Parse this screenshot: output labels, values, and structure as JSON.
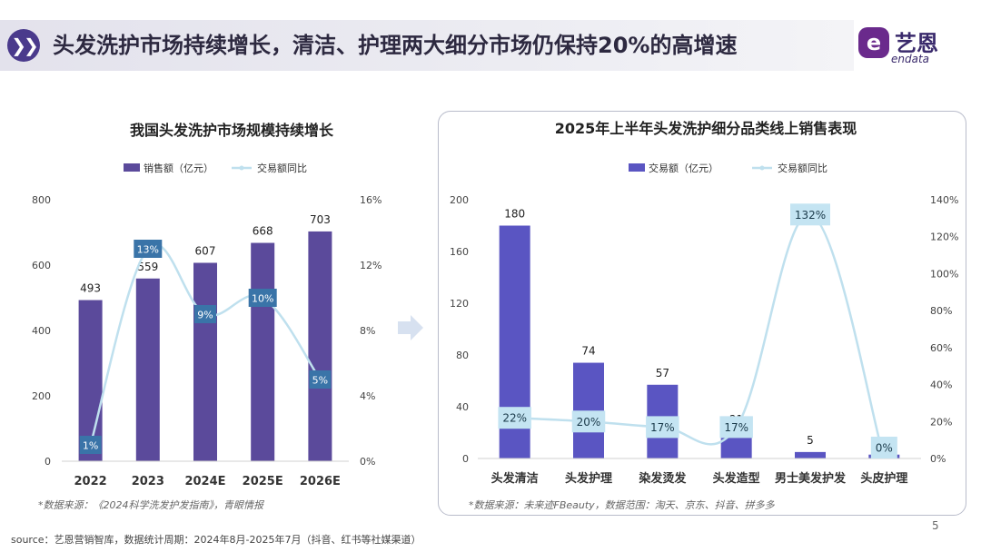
{
  "header": {
    "icon": "double-chevron-right-icon",
    "title": "头发洗护市场持续增长，清洁、护理两大细分市场仍保持20%的高增速"
  },
  "logo": {
    "cn": "艺恩",
    "en": "endata",
    "badge": "e"
  },
  "page_number": "5",
  "source": "source：艺恩营销智库，数据统计周期：2024年8月-2025年7月（抖音、红书等社媒渠道）",
  "colors": {
    "bar": "#5b4a9b",
    "bar_right": "#5a55c2",
    "line": "#bfe0ee",
    "label_box_dark": "#3a74a8",
    "label_box_light": "#c4e4f2"
  },
  "chart_data": [
    {
      "type": "bar",
      "title": "我国头发洗护市场规模持续增长",
      "categories": [
        "2022",
        "2023",
        "2024E",
        "2025E",
        "2026E"
      ],
      "series": [
        {
          "name": "销售额（亿元）",
          "type": "bar",
          "values": [
            493,
            559,
            607,
            668,
            703
          ],
          "labels": [
            "493",
            "559",
            "607",
            "668",
            "703"
          ]
        },
        {
          "name": "交易额同比",
          "type": "line",
          "axis": "right",
          "values": [
            1,
            13,
            9,
            10,
            5
          ],
          "labels": [
            "1%",
            "13%",
            "9%",
            "10%",
            "5%"
          ]
        }
      ],
      "y_left": {
        "min": 0,
        "max": 800,
        "ticks": [
          "0",
          "200",
          "400",
          "600",
          "800"
        ]
      },
      "y_right": {
        "min": 0,
        "max": 16,
        "ticks": [
          "0%",
          "4%",
          "8%",
          "12%",
          "16%"
        ]
      },
      "note": "*数据来源：《2024科学洗发护发指南》，青眼情报"
    },
    {
      "type": "bar",
      "title": "2025年上半年头发洗护细分品类线上销售表现",
      "categories": [
        "头发清洁",
        "头发护理",
        "染发烫发",
        "头发造型",
        "男士美发护发",
        "头皮护理"
      ],
      "series": [
        {
          "name": "交易额（亿元）",
          "type": "bar",
          "values": [
            180,
            74,
            57,
            21,
            5,
            3
          ],
          "labels": [
            "180",
            "74",
            "57",
            "21",
            "5",
            "3"
          ]
        },
        {
          "name": "交易额同比",
          "type": "line",
          "axis": "right",
          "values": [
            22,
            20,
            17,
            17,
            132,
            0
          ],
          "labels": [
            "22%",
            "20%",
            "17%",
            "17%",
            "132%",
            "0%"
          ]
        }
      ],
      "y_left": {
        "min": 0,
        "max": 200,
        "ticks": [
          "0",
          "40",
          "80",
          "120",
          "160",
          "200"
        ]
      },
      "y_right": {
        "min": 0,
        "max": 140,
        "ticks": [
          "0%",
          "20%",
          "40%",
          "60%",
          "80%",
          "100%",
          "120%",
          "140%"
        ]
      },
      "note": "*数据来源：未来迹FBeauty，数据范围：淘天、京东、抖音、拼多多"
    }
  ]
}
